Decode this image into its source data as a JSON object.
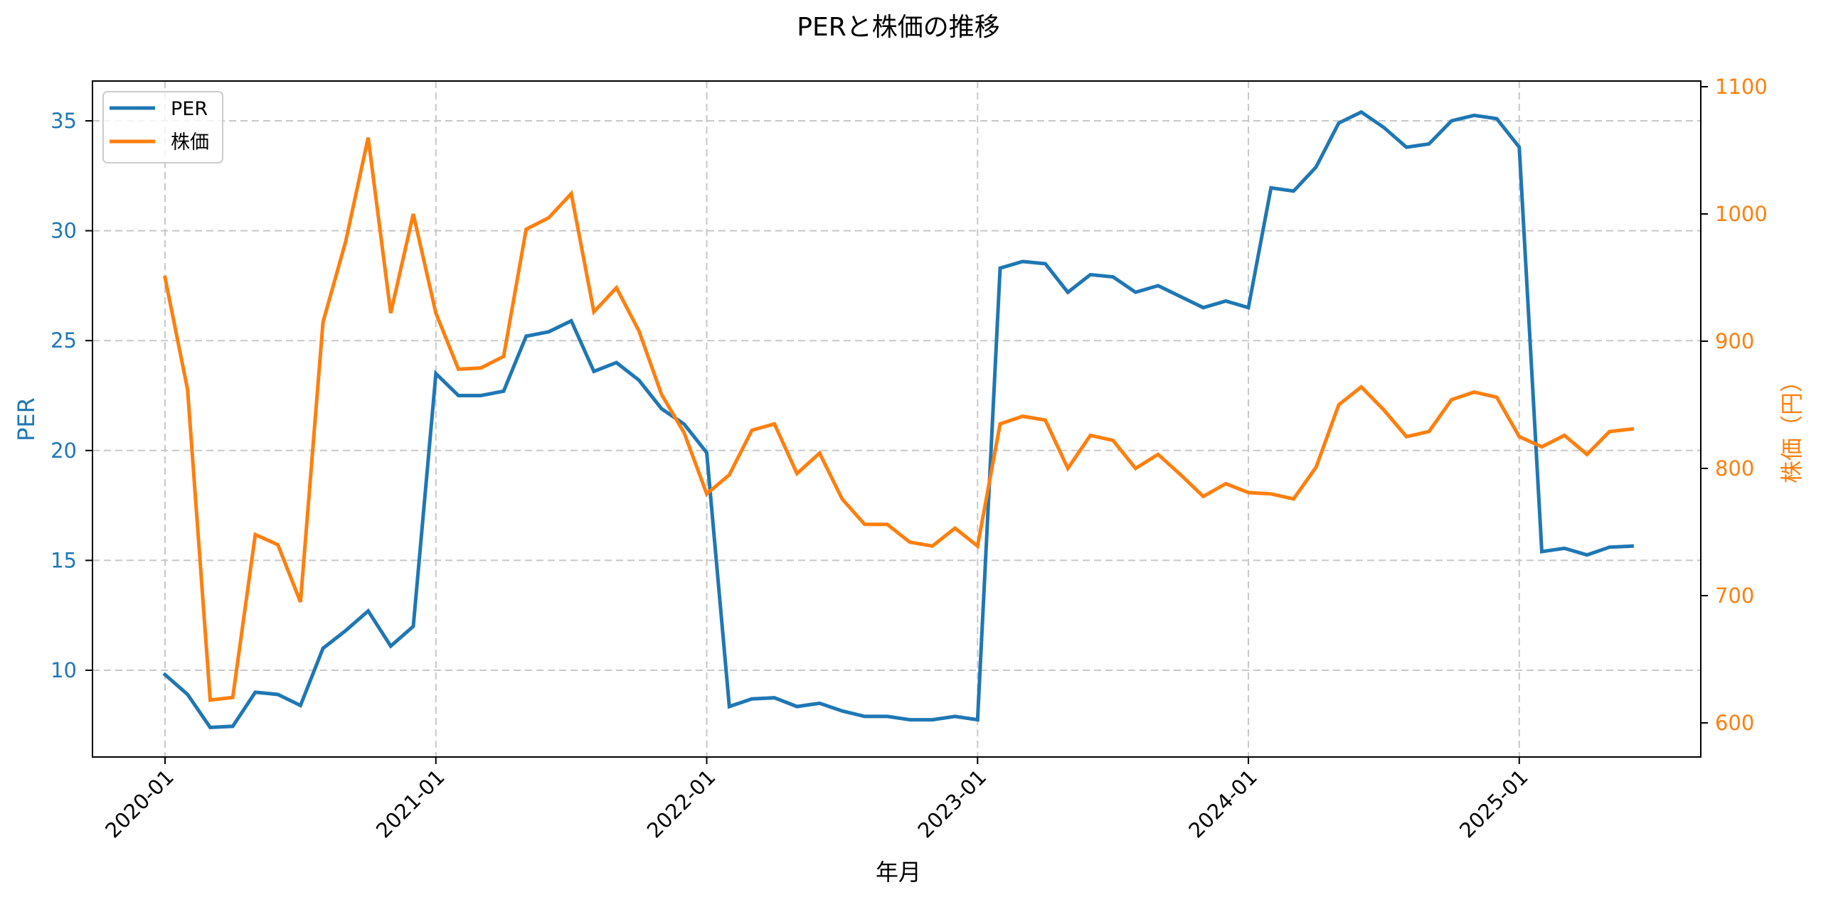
{
  "chart_data": {
    "type": "line",
    "title": "PERと株価の推移",
    "xlabel": "年月",
    "ylabel_left": "PER",
    "ylabel_right": "株価（円）",
    "grid": true,
    "legend_position": "upper left",
    "legend": [
      "PER",
      "株価"
    ],
    "x_ticks": [
      "2020-01",
      "2021-01",
      "2022-01",
      "2023-01",
      "2024-01",
      "2025-01"
    ],
    "y_left_ticks": [
      10,
      15,
      20,
      25,
      30,
      35
    ],
    "y_right_ticks": [
      600,
      700,
      800,
      900,
      1000,
      1100
    ],
    "y_left_range": [
      6.3,
      36.8
    ],
    "y_right_range": [
      573,
      1105
    ],
    "x": [
      "2020-01",
      "2020-02",
      "2020-03",
      "2020-04",
      "2020-05",
      "2020-06",
      "2020-07",
      "2020-08",
      "2020-09",
      "2020-10",
      "2020-11",
      "2020-12",
      "2021-01",
      "2021-02",
      "2021-03",
      "2021-04",
      "2021-05",
      "2021-06",
      "2021-07",
      "2021-08",
      "2021-09",
      "2021-10",
      "2021-11",
      "2021-12",
      "2022-01",
      "2022-02",
      "2022-03",
      "2022-04",
      "2022-05",
      "2022-06",
      "2022-07",
      "2022-08",
      "2022-09",
      "2022-10",
      "2022-11",
      "2022-12",
      "2023-01",
      "2023-02",
      "2023-03",
      "2023-04",
      "2023-05",
      "2023-06",
      "2023-07",
      "2023-08",
      "2023-09",
      "2023-10",
      "2023-11",
      "2023-12",
      "2024-01",
      "2024-02",
      "2024-03",
      "2024-04",
      "2024-05",
      "2024-06",
      "2024-07",
      "2024-08",
      "2024-09",
      "2024-10",
      "2024-11",
      "2024-12",
      "2025-01",
      "2025-02",
      "2025-03",
      "2025-04",
      "2025-05",
      "2025-06"
    ],
    "series": [
      {
        "name": "PER",
        "axis": "left",
        "color": "#1f77b4",
        "values": [
          9.8,
          8.9,
          7.4,
          7.45,
          9.0,
          8.9,
          8.4,
          11.0,
          11.8,
          12.7,
          11.1,
          12.0,
          23.5,
          22.5,
          22.5,
          22.7,
          25.2,
          25.4,
          25.9,
          23.6,
          24.0,
          23.2,
          21.9,
          21.2,
          19.9,
          8.35,
          8.7,
          8.75,
          8.35,
          8.5,
          8.15,
          7.9,
          7.9,
          7.75,
          7.75,
          7.9,
          7.75,
          28.3,
          28.6,
          28.5,
          27.2,
          28.0,
          27.9,
          27.2,
          27.5,
          27.0,
          26.5,
          26.8,
          26.5,
          31.95,
          31.8,
          32.9,
          34.9,
          35.4,
          34.7,
          33.8,
          33.95,
          35.0,
          35.25,
          35.1,
          33.8,
          15.4,
          15.55,
          15.25,
          15.6,
          15.65
        ]
      },
      {
        "name": "株価",
        "axis": "right",
        "color": "#ff7f0e",
        "values": [
          950,
          862,
          618,
          620,
          748,
          740,
          695,
          915,
          978,
          1060,
          922,
          1000,
          922,
          878,
          879,
          888,
          988,
          997,
          1016,
          923,
          942,
          908,
          858,
          828,
          780,
          795,
          830,
          835,
          796,
          812,
          776,
          756,
          756,
          742,
          739,
          753,
          739,
          835,
          841,
          838,
          800,
          826,
          822,
          800,
          811,
          795,
          778,
          788,
          781,
          780,
          776,
          801,
          850,
          864,
          846,
          825,
          829,
          854,
          860,
          856,
          825,
          817,
          826,
          811,
          829,
          831
        ]
      }
    ]
  }
}
